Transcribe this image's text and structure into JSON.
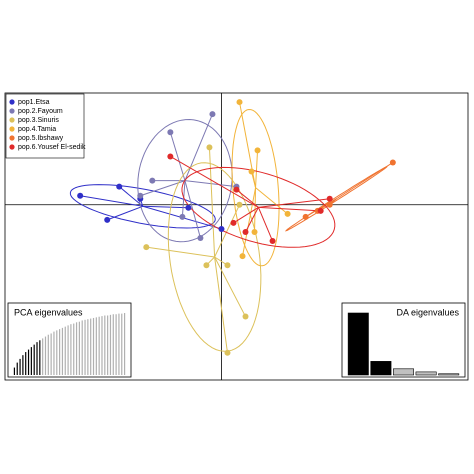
{
  "chart_data": [
    {
      "type": "scatter",
      "xlim": [
        -7.2,
        8.2
      ],
      "ylim": [
        -5.8,
        3.7
      ],
      "axes_at_zero": true,
      "legend": "top-left",
      "series": [
        {
          "name": "pop1.Etsa",
          "color": "#2f2fc8",
          "x": [
            -4.7,
            -3.4,
            -3.8,
            -2.7,
            0.0,
            -1.1
          ],
          "y": [
            0.3,
            0.6,
            -0.5,
            0.2,
            -0.8,
            -0.1
          ]
        },
        {
          "name": "pop.2.Fayoum",
          "color": "#7d79b3",
          "x": [
            -1.7,
            -0.3,
            -2.3,
            -2.7,
            0.5,
            -1.3,
            -0.7
          ],
          "y": [
            2.4,
            3.0,
            0.8,
            0.3,
            0.6,
            -0.4,
            -1.1
          ]
        },
        {
          "name": "pop.3.Sinuris",
          "color": "#dcc15a",
          "x": [
            -0.4,
            -2.5,
            0.2,
            -0.5,
            0.8,
            0.2,
            0.6
          ],
          "y": [
            1.9,
            -1.4,
            -2.0,
            -2.0,
            -3.7,
            -4.9,
            0.0
          ]
        },
        {
          "name": "pop.4.Tamia",
          "color": "#f2b43a",
          "x": [
            0.6,
            1.2,
            1.0,
            2.2,
            1.1,
            0.7
          ],
          "y": [
            3.4,
            1.8,
            1.1,
            -0.3,
            -0.9,
            -1.7
          ]
        },
        {
          "name": "pop.5.Ibshawy",
          "color": "#f07330",
          "x": [
            5.7,
            3.6,
            3.2,
            2.8
          ],
          "y": [
            1.4,
            0.0,
            -0.2,
            -0.4
          ]
        },
        {
          "name": "pop.6.Yousef El-sedik",
          "color": "#e02a2a",
          "x": [
            -1.7,
            0.5,
            0.4,
            0.8,
            1.7,
            3.3,
            3.6
          ],
          "y": [
            1.6,
            0.5,
            -0.6,
            -0.9,
            -1.2,
            -0.2,
            0.2
          ]
        }
      ]
    },
    {
      "type": "bar",
      "title": "PCA eigenvalues",
      "corner": "bottom-left",
      "ylim": [
        0,
        100
      ],
      "color": "#000000",
      "rest_color": "#b0b0b0",
      "retained": 10,
      "values": [
        12,
        20,
        26,
        32,
        37,
        41,
        45,
        49,
        53,
        56,
        59,
        62,
        65,
        67,
        70,
        72,
        74,
        76,
        78,
        80,
        82,
        83,
        85,
        86,
        88,
        89,
        90,
        91,
        92,
        93,
        94,
        95,
        96,
        96,
        97,
        98,
        98,
        99,
        99,
        100
      ]
    },
    {
      "type": "bar",
      "title": "DA eigenvalues",
      "corner": "bottom-right",
      "ylim": [
        0,
        100
      ],
      "color": "#000000",
      "rest_color": "#c0c0c0",
      "retained": 2,
      "values": [
        100,
        22,
        10,
        5,
        2
      ]
    }
  ]
}
